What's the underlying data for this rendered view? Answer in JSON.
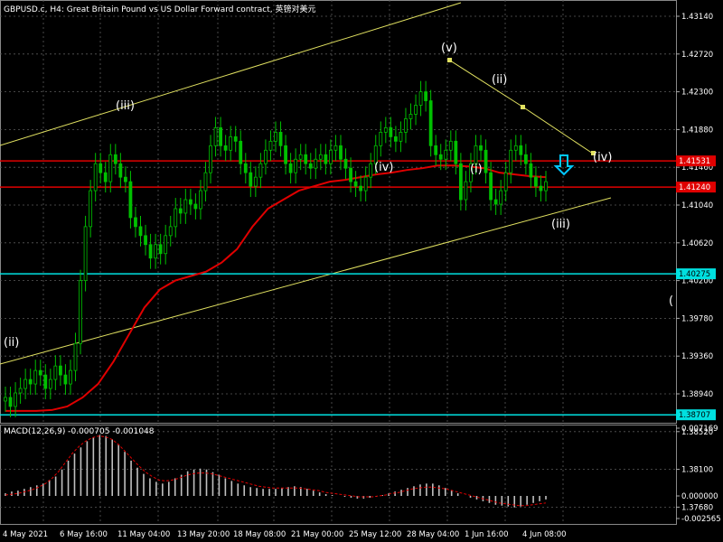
{
  "header": {
    "symbol_tf": "GBPUSD.c, H4:",
    "description": "Great Britain Pound vs US Dollar Forward contract,",
    "description_cn": "英镑对美元"
  },
  "macd": {
    "label": "MACD(12,26,9)",
    "main_value": "-0.000705",
    "signal_value": "-0.001048",
    "axis_labels": [
      "0.007169",
      "0.000000",
      "-0.002565"
    ]
  },
  "colors": {
    "background": "#000000",
    "grid": "#5a5a5a",
    "bull_candle": "#00c000",
    "bear_candle": "#00c000",
    "ma": "#e00000",
    "resistance": "#e00000",
    "support": "#00e0e0",
    "channel": "#e0e060",
    "wave_label": "#ffffff",
    "arrow": "#00c8ff"
  },
  "chart_data": {
    "type": "candlestick",
    "symbol": "GBPUSD.c",
    "timeframe": "H4",
    "y_axis_labels": [
      "1.43140",
      "1.42720",
      "1.42300",
      "1.41880",
      "1.41460",
      "1.41040",
      "1.40620",
      "1.40200",
      "1.39780",
      "1.39360",
      "1.38940",
      "1.38520",
      "1.38100",
      "1.37680"
    ],
    "ylim": [
      1.3735,
      1.4335
    ],
    "x_axis_labels": [
      "4 May 2021",
      "6 May 16:00",
      "11 May 04:00",
      "13 May 20:00",
      "18 May 08:00",
      "21 May 00:00",
      "25 May 12:00",
      "28 May 04:00",
      "1 Jun 16:00",
      "4 Jun 08:00"
    ],
    "horizontal_levels": [
      {
        "value": 1.41531,
        "label": "1.41531",
        "kind": "resistance"
      },
      {
        "value": 1.4124,
        "label": "1.41240",
        "kind": "resistance"
      },
      {
        "value": 1.40275,
        "label": "1.40275",
        "kind": "support"
      },
      {
        "value": 1.38707,
        "label": "1.38707",
        "kind": "support"
      }
    ],
    "wave_labels": [
      "(ii)",
      "(iii)",
      "(iv)",
      "(v)",
      "(i)",
      "(ii)",
      "(iii)",
      "(iv)",
      "("
    ],
    "closes": [
      1.389,
      1.388,
      1.3895,
      1.39,
      1.391,
      1.3905,
      1.392,
      1.3915,
      1.39,
      1.391,
      1.3925,
      1.3915,
      1.3905,
      1.392,
      1.395,
      1.402,
      1.408,
      1.412,
      1.415,
      1.414,
      1.413,
      1.416,
      1.415,
      1.4135,
      1.413,
      1.409,
      1.408,
      1.407,
      1.406,
      1.4045,
      1.406,
      1.405,
      1.407,
      1.408,
      1.41,
      1.4095,
      1.411,
      1.4105,
      1.41,
      1.412,
      1.414,
      1.417,
      1.419,
      1.417,
      1.4165,
      1.418,
      1.4175,
      1.415,
      1.414,
      1.4125,
      1.4135,
      1.415,
      1.4165,
      1.4175,
      1.4185,
      1.417,
      1.415,
      1.414,
      1.4155,
      1.416,
      1.415,
      1.4145,
      1.4155,
      1.416,
      1.415,
      1.4165,
      1.417,
      1.4155,
      1.4145,
      1.413,
      1.4125,
      1.412,
      1.4135,
      1.415,
      1.417,
      1.4185,
      1.419,
      1.418,
      1.4175,
      1.4185,
      1.42,
      1.4205,
      1.4215,
      1.423,
      1.422,
      1.417,
      1.416,
      1.4155,
      1.4165,
      1.4175,
      1.415,
      1.411,
      1.413,
      1.415,
      1.417,
      1.4165,
      1.414,
      1.411,
      1.4105,
      1.412,
      1.414,
      1.4165,
      1.417,
      1.416,
      1.415,
      1.4135,
      1.4125,
      1.412,
      1.413
    ],
    "ma_values": [
      1.3875,
      1.3875,
      1.3875,
      1.3876,
      1.388,
      1.389,
      1.3905,
      1.393,
      1.396,
      1.399,
      1.401,
      1.402,
      1.4025,
      1.403,
      1.404,
      1.4055,
      1.408,
      1.41,
      1.411,
      1.412,
      1.4125,
      1.413,
      1.4132,
      1.4135,
      1.4138,
      1.414,
      1.4143,
      1.4145,
      1.4148,
      1.4148,
      1.4147,
      1.4145,
      1.414,
      1.4138,
      1.4136,
      1.4135
    ],
    "macd_hist": [
      0.0003,
      0.0005,
      0.0006,
      0.0008,
      0.001,
      0.0012,
      0.0014,
      0.0018,
      0.0022,
      0.003,
      0.004,
      0.0048,
      0.0055,
      0.0062,
      0.0066,
      0.0069,
      0.0068,
      0.0064,
      0.0058,
      0.005,
      0.004,
      0.0032,
      0.0025,
      0.002,
      0.0016,
      0.0014,
      0.0016,
      0.002,
      0.0024,
      0.0028,
      0.003,
      0.0031,
      0.003,
      0.0027,
      0.0024,
      0.002,
      0.0017,
      0.0014,
      0.0012,
      0.001,
      0.0009,
      0.0008,
      0.0008,
      0.0008,
      0.0009,
      0.001,
      0.0011,
      0.001,
      0.0008,
      0.0006,
      0.0004,
      0.0002,
      0.0001,
      0.0,
      -0.0001,
      -0.0002,
      -0.0003,
      -0.0003,
      -0.0002,
      -0.0001,
      0.0001,
      0.0003,
      0.0005,
      0.0007,
      0.0009,
      0.0011,
      0.0013,
      0.0014,
      0.0014,
      0.0012,
      0.0009,
      0.0006,
      0.0003,
      0.0,
      -0.0002,
      -0.0004,
      -0.0006,
      -0.0008,
      -0.001,
      -0.0011,
      -0.0012,
      -0.0013,
      -0.0012,
      -0.001,
      -0.0008,
      -0.0006,
      -0.0004
    ],
    "macd_signal": [
      0.0001,
      0.0002,
      0.0003,
      0.0005,
      0.0007,
      0.001,
      0.0014,
      0.002,
      0.0028,
      0.0038,
      0.0048,
      0.0056,
      0.0062,
      0.0066,
      0.0068,
      0.0067,
      0.0064,
      0.0058,
      0.005,
      0.0042,
      0.0034,
      0.0027,
      0.0022,
      0.0018,
      0.0017,
      0.0018,
      0.002,
      0.0023,
      0.0025,
      0.0026,
      0.0026,
      0.0025,
      0.0023,
      0.0021,
      0.0019,
      0.0017,
      0.0015,
      0.0013,
      0.0011,
      0.001,
      0.0009,
      0.0009,
      0.0009,
      0.0009,
      0.0009,
      0.0008,
      0.0007,
      0.0006,
      0.0004,
      0.0003,
      0.0002,
      0.0001,
      0.0,
      -0.0001,
      -0.0001,
      -0.0001,
      0.0,
      0.0001,
      0.0003,
      0.0004,
      0.0006,
      0.0008,
      0.0009,
      0.001,
      0.001,
      0.0009,
      0.0008,
      0.0006,
      0.0004,
      0.0002,
      0.0,
      -0.0002,
      -0.0004,
      -0.0006,
      -0.0008,
      -0.0009,
      -0.001,
      -0.0011,
      -0.0011,
      -0.001,
      -0.0009,
      -0.0008
    ]
  }
}
